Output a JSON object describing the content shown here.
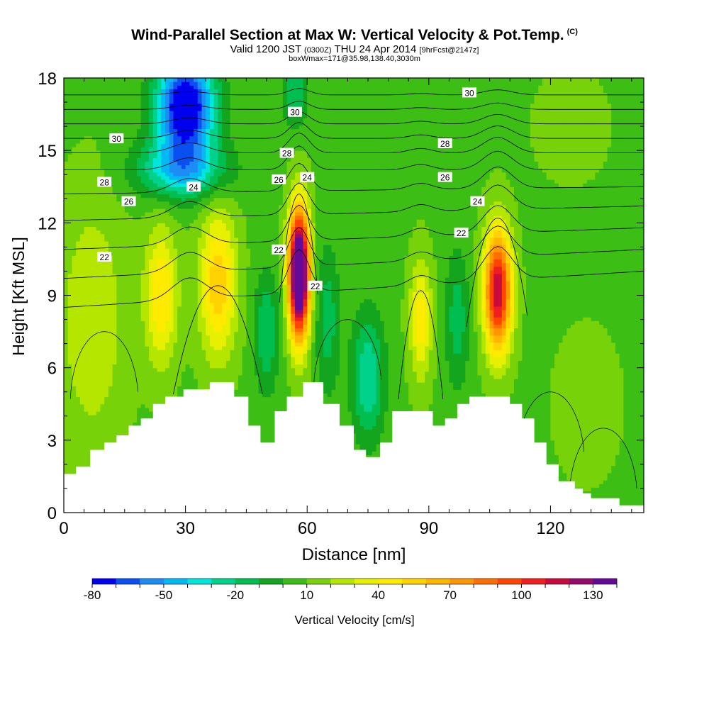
{
  "header": {
    "title": "Wind-Parallel Section at Max W: Vertical Velocity & Pot.Temp.",
    "copyright_mark": "(C)",
    "valid_prefix": "Valid 1200 JST",
    "utc_time": "(0300Z)",
    "valid_date": "THU 24 Apr 2014",
    "forecast_info": "[9hrFcst@2147z]",
    "box_info": "boxWmax=171@35.98,138.40,3030m"
  },
  "chart_data": {
    "type": "heatmap",
    "xlabel": "Distance [nm]",
    "ylabel": "Height [Kft MSL]",
    "xlim": [
      0,
      143
    ],
    "ylim": [
      0,
      18
    ],
    "x_ticks": [
      0,
      30,
      60,
      90,
      120
    ],
    "y_ticks": [
      0,
      3,
      6,
      9,
      12,
      15,
      18
    ],
    "colorbar": {
      "label": "Vertical Velocity [cm/s]",
      "levels": [
        -80,
        -70,
        -60,
        -50,
        -40,
        -30,
        -20,
        -10,
        0,
        10,
        20,
        30,
        40,
        50,
        60,
        70,
        80,
        90,
        100,
        110,
        120,
        130,
        140
      ],
      "tick_labels": [
        "-80",
        "-50",
        "-20",
        "10",
        "40",
        "70",
        "100",
        "130"
      ],
      "colors": [
        "#0000f0",
        "#0a50f0",
        "#1e8cf5",
        "#00b9f5",
        "#00e6dc",
        "#00d28c",
        "#00be50",
        "#14a51e",
        "#3cbe14",
        "#78d20a",
        "#b4e600",
        "#e6f000",
        "#ffeb00",
        "#ffd200",
        "#ffb400",
        "#ff9600",
        "#ff6e00",
        "#ff4600",
        "#f01e1e",
        "#c80a3c",
        "#960a6e",
        "#640a96"
      ]
    },
    "updraft_cores": [
      {
        "x": 38,
        "y": 9.5,
        "w_max": 50
      },
      {
        "x": 58,
        "y": 9.9,
        "w_max": 171
      },
      {
        "x": 88,
        "y": 8.0,
        "w_max": 35
      },
      {
        "x": 107,
        "y": 9.2,
        "w_max": 110
      }
    ],
    "theta_contour_labels": [
      {
        "text": "30",
        "x": 13,
        "y": 15.5
      },
      {
        "text": "28",
        "x": 10,
        "y": 13.7
      },
      {
        "text": "26",
        "x": 16,
        "y": 12.9
      },
      {
        "text": "24",
        "x": 32,
        "y": 13.5
      },
      {
        "text": "22",
        "x": 10,
        "y": 10.6
      },
      {
        "text": "30",
        "x": 57,
        "y": 16.6
      },
      {
        "text": "28",
        "x": 55,
        "y": 14.9
      },
      {
        "text": "26",
        "x": 53,
        "y": 13.8
      },
      {
        "text": "24",
        "x": 60,
        "y": 13.9
      },
      {
        "text": "22",
        "x": 53,
        "y": 10.9
      },
      {
        "text": "22",
        "x": 62,
        "y": 9.4
      },
      {
        "text": "30",
        "x": 100,
        "y": 17.4
      },
      {
        "text": "28",
        "x": 94,
        "y": 15.3
      },
      {
        "text": "26",
        "x": 94,
        "y": 13.9
      },
      {
        "text": "24",
        "x": 102,
        "y": 12.9
      },
      {
        "text": "22",
        "x": 98,
        "y": 11.6
      }
    ],
    "terrain_profile": [
      [
        0,
        1.6
      ],
      [
        3,
        1.6
      ],
      [
        3,
        1.9
      ],
      [
        6.5,
        1.9
      ],
      [
        6.5,
        2.6
      ],
      [
        10,
        2.6
      ],
      [
        10,
        2.9
      ],
      [
        13,
        2.9
      ],
      [
        13,
        3.2
      ],
      [
        16,
        3.2
      ],
      [
        16,
        3.6
      ],
      [
        19,
        3.6
      ],
      [
        19,
        3.9
      ],
      [
        22,
        3.9
      ],
      [
        22,
        4.5
      ],
      [
        25,
        4.5
      ],
      [
        25,
        4.8
      ],
      [
        29.5,
        4.8
      ],
      [
        29.5,
        5.1
      ],
      [
        36,
        5.1
      ],
      [
        36,
        5.4
      ],
      [
        42,
        5.4
      ],
      [
        42,
        4.8
      ],
      [
        45.5,
        4.8
      ],
      [
        45.5,
        3.6
      ],
      [
        48.5,
        3.6
      ],
      [
        48.5,
        2.9
      ],
      [
        52,
        2.9
      ],
      [
        52,
        4.2
      ],
      [
        55,
        4.2
      ],
      [
        55,
        4.8
      ],
      [
        59,
        4.8
      ],
      [
        59,
        5.4
      ],
      [
        64,
        5.4
      ],
      [
        64,
        4.5
      ],
      [
        68,
        4.5
      ],
      [
        68,
        3.6
      ],
      [
        71.5,
        3.6
      ],
      [
        71.5,
        2.6
      ],
      [
        74.5,
        2.6
      ],
      [
        74.5,
        2.3
      ],
      [
        78,
        2.3
      ],
      [
        78,
        2.9
      ],
      [
        81,
        2.9
      ],
      [
        81,
        4.2
      ],
      [
        91,
        4.2
      ],
      [
        91,
        3.6
      ],
      [
        94,
        3.6
      ],
      [
        94,
        3.9
      ],
      [
        97,
        3.9
      ],
      [
        97,
        4.5
      ],
      [
        100,
        4.5
      ],
      [
        100,
        4.8
      ],
      [
        110,
        4.8
      ],
      [
        110,
        4.5
      ],
      [
        113,
        4.5
      ],
      [
        113,
        3.9
      ],
      [
        116,
        3.9
      ],
      [
        116,
        2.9
      ],
      [
        119,
        2.9
      ],
      [
        119,
        2.0
      ],
      [
        122,
        2.0
      ],
      [
        122,
        1.3
      ],
      [
        126,
        1.3
      ],
      [
        126,
        1.0
      ],
      [
        128,
        1.0
      ],
      [
        128,
        0.8
      ],
      [
        130,
        0.8
      ],
      [
        130,
        0.6
      ],
      [
        137,
        0.6
      ],
      [
        137,
        0.3
      ],
      [
        143,
        0.3
      ]
    ]
  }
}
